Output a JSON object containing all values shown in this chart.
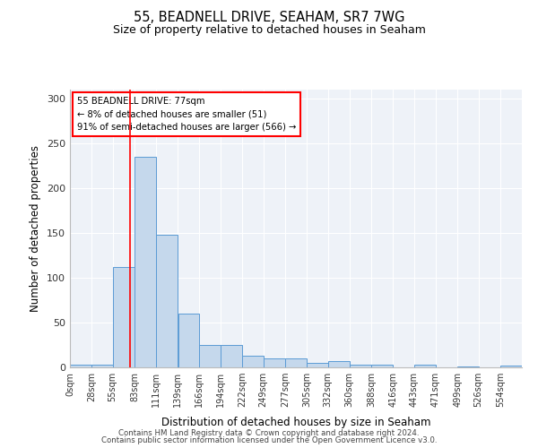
{
  "title": "55, BEADNELL DRIVE, SEAHAM, SR7 7WG",
  "subtitle": "Size of property relative to detached houses in Seaham",
  "xlabel": "Distribution of detached houses by size in Seaham",
  "ylabel": "Number of detached properties",
  "bar_color": "#c5d8ec",
  "bar_edge_color": "#5b9bd5",
  "background_color": "#eef2f8",
  "grid_color": "#ffffff",
  "bin_edges": [
    0,
    28,
    55,
    83,
    111,
    139,
    166,
    194,
    222,
    249,
    277,
    305,
    332,
    360,
    388,
    416,
    443,
    471,
    499,
    526,
    554
  ],
  "bin_labels": [
    "0sqm",
    "28sqm",
    "55sqm",
    "83sqm",
    "111sqm",
    "139sqm",
    "166sqm",
    "194sqm",
    "222sqm",
    "249sqm",
    "277sqm",
    "305sqm",
    "332sqm",
    "360sqm",
    "388sqm",
    "416sqm",
    "443sqm",
    "471sqm",
    "499sqm",
    "526sqm",
    "554sqm"
  ],
  "bar_heights": [
    3,
    3,
    112,
    235,
    148,
    60,
    25,
    25,
    13,
    10,
    10,
    5,
    7,
    3,
    3,
    0,
    3,
    0,
    1,
    0,
    2
  ],
  "ylim": [
    0,
    310
  ],
  "yticks": [
    0,
    50,
    100,
    150,
    200,
    250,
    300
  ],
  "red_line_x": 77,
  "annotation_line1": "55 BEADNELL DRIVE: 77sqm",
  "annotation_line2": "← 8% of detached houses are smaller (51)",
  "annotation_line3": "91% of semi-detached houses are larger (566) →",
  "footer_line1": "Contains HM Land Registry data © Crown copyright and database right 2024.",
  "footer_line2": "Contains public sector information licensed under the Open Government Licence v3.0."
}
